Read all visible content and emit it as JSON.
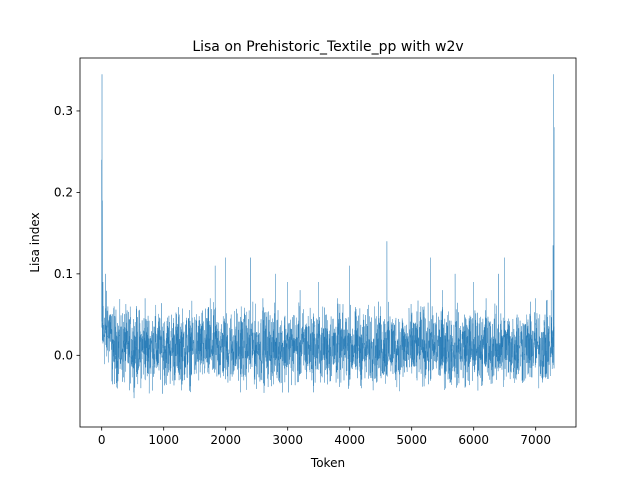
{
  "chart_data": {
    "type": "line",
    "title": "Lisa on Prehistoric_Textile_pp with w2v",
    "xlabel": "Token",
    "ylabel": "Lisa index",
    "xlim": [
      -350,
      7650
    ],
    "ylim": [
      -0.088,
      0.365
    ],
    "xticks": [
      0,
      1000,
      2000,
      3000,
      4000,
      5000,
      6000,
      7000
    ],
    "yticks": [
      0.0,
      0.1,
      0.2,
      0.3
    ],
    "xtick_labels": [
      "0",
      "1000",
      "2000",
      "3000",
      "4000",
      "5000",
      "6000",
      "7000"
    ],
    "ytick_labels": [
      "0.0",
      "0.1",
      "0.2",
      "0.3"
    ],
    "grid": false,
    "series": [
      {
        "color": "#1f77b4",
        "n_points": 7300,
        "baseline": 0.01,
        "noise_range": [
          -0.04,
          0.08
        ],
        "x": [
          0,
          5,
          10,
          20,
          60,
          100,
          150,
          200,
          400,
          700,
          1000,
          1250,
          1500,
          1750,
          1830,
          2000,
          2250,
          2400,
          2600,
          2800,
          3000,
          3200,
          3500,
          3800,
          4000,
          4100,
          4300,
          4500,
          4600,
          4700,
          5000,
          5200,
          5300,
          5500,
          5700,
          5850,
          6000,
          6200,
          6400,
          6500,
          6700,
          7000,
          7150,
          7250,
          7280,
          7290,
          7300
        ],
        "y": [
          0.24,
          0.345,
          0.19,
          0.09,
          0.1,
          0.06,
          0.03,
          0.06,
          0.04,
          0.07,
          0.03,
          0.05,
          0.04,
          0.07,
          0.11,
          0.12,
          0.06,
          0.12,
          0.07,
          0.1,
          0.09,
          0.08,
          0.09,
          0.07,
          0.11,
          0.03,
          0.06,
          0.06,
          0.14,
          0.02,
          0.05,
          0.06,
          0.12,
          0.08,
          0.1,
          0.05,
          0.09,
          0.07,
          0.1,
          0.12,
          0.05,
          0.07,
          0.05,
          0.08,
          0.135,
          0.345,
          0.28
        ]
      }
    ]
  }
}
